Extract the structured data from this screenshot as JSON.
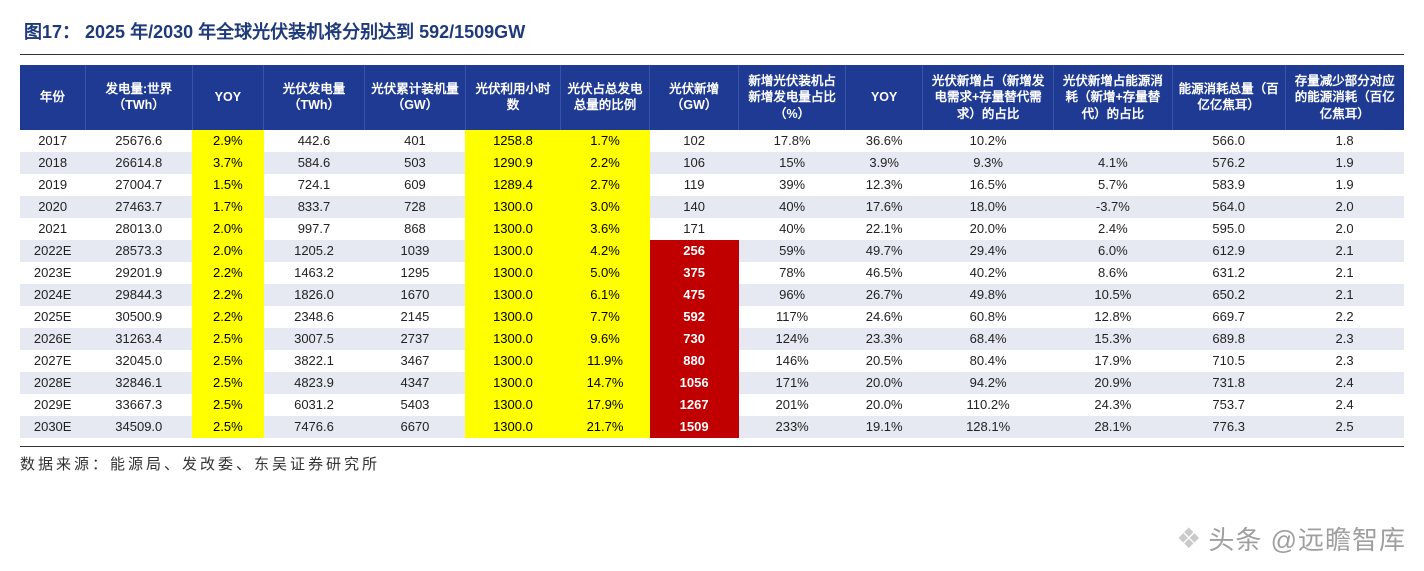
{
  "figure": {
    "title": "图17： 2025 年/2030 年全球光伏装机将分别达到 592/1509GW"
  },
  "table": {
    "header_bg": "#1f3a93",
    "header_fg": "#ffffff",
    "highlight_yellow": "#ffff00",
    "highlight_red": "#c00000",
    "stripe_bg": "#e6e9f2",
    "columns": [
      "年份",
      "发电量:世界（TWh）",
      "YOY",
      "光伏发电量（TWh）",
      "光伏累计装机量（GW）",
      "光伏利用小时数",
      "光伏占总发电总量的比例",
      "光伏新增（GW）",
      "新增光伏装机占新增发电量占比（%）",
      "YOY",
      "光伏新增占（新增发电需求+存量替代需求）的占比",
      "光伏新增占能源消耗（新增+存量替代）的占比",
      "能源消耗总量（百亿亿焦耳）",
      "存量减少部分对应的能源消耗（百亿亿焦耳）"
    ],
    "yellow_cols": [
      2,
      5,
      6
    ],
    "red_col": 7,
    "red_from_row": 5,
    "rows": [
      [
        "2017",
        "25676.6",
        "2.9%",
        "442.6",
        "401",
        "1258.8",
        "1.7%",
        "102",
        "17.8%",
        "36.6%",
        "10.2%",
        "",
        "566.0",
        "1.8"
      ],
      [
        "2018",
        "26614.8",
        "3.7%",
        "584.6",
        "503",
        "1290.9",
        "2.2%",
        "106",
        "15%",
        "3.9%",
        "9.3%",
        "4.1%",
        "576.2",
        "1.9"
      ],
      [
        "2019",
        "27004.7",
        "1.5%",
        "724.1",
        "609",
        "1289.4",
        "2.7%",
        "119",
        "39%",
        "12.3%",
        "16.5%",
        "5.7%",
        "583.9",
        "1.9"
      ],
      [
        "2020",
        "27463.7",
        "1.7%",
        "833.7",
        "728",
        "1300.0",
        "3.0%",
        "140",
        "40%",
        "17.6%",
        "18.0%",
        "-3.7%",
        "564.0",
        "2.0"
      ],
      [
        "2021",
        "28013.0",
        "2.0%",
        "997.7",
        "868",
        "1300.0",
        "3.6%",
        "171",
        "40%",
        "22.1%",
        "20.0%",
        "2.4%",
        "595.0",
        "2.0"
      ],
      [
        "2022E",
        "28573.3",
        "2.0%",
        "1205.2",
        "1039",
        "1300.0",
        "4.2%",
        "256",
        "59%",
        "49.7%",
        "29.4%",
        "6.0%",
        "612.9",
        "2.1"
      ],
      [
        "2023E",
        "29201.9",
        "2.2%",
        "1463.2",
        "1295",
        "1300.0",
        "5.0%",
        "375",
        "78%",
        "46.5%",
        "40.2%",
        "8.6%",
        "631.2",
        "2.1"
      ],
      [
        "2024E",
        "29844.3",
        "2.2%",
        "1826.0",
        "1670",
        "1300.0",
        "6.1%",
        "475",
        "96%",
        "26.7%",
        "49.8%",
        "10.5%",
        "650.2",
        "2.1"
      ],
      [
        "2025E",
        "30500.9",
        "2.2%",
        "2348.6",
        "2145",
        "1300.0",
        "7.7%",
        "592",
        "117%",
        "24.6%",
        "60.8%",
        "12.8%",
        "669.7",
        "2.2"
      ],
      [
        "2026E",
        "31263.4",
        "2.5%",
        "3007.5",
        "2737",
        "1300.0",
        "9.6%",
        "730",
        "124%",
        "23.3%",
        "68.4%",
        "15.3%",
        "689.8",
        "2.3"
      ],
      [
        "2027E",
        "32045.0",
        "2.5%",
        "3822.1",
        "3467",
        "1300.0",
        "11.9%",
        "880",
        "146%",
        "20.5%",
        "80.4%",
        "17.9%",
        "710.5",
        "2.3"
      ],
      [
        "2028E",
        "32846.1",
        "2.5%",
        "4823.9",
        "4347",
        "1300.0",
        "14.7%",
        "1056",
        "171%",
        "20.0%",
        "94.2%",
        "20.9%",
        "731.8",
        "2.4"
      ],
      [
        "2029E",
        "33667.3",
        "2.5%",
        "6031.2",
        "5403",
        "1300.0",
        "17.9%",
        "1267",
        "201%",
        "20.0%",
        "110.2%",
        "24.3%",
        "753.7",
        "2.4"
      ],
      [
        "2030E",
        "34509.0",
        "2.5%",
        "7476.6",
        "6670",
        "1300.0",
        "21.7%",
        "1509",
        "233%",
        "19.1%",
        "128.1%",
        "28.1%",
        "776.3",
        "2.5"
      ]
    ]
  },
  "source": {
    "text": "数据来源：能源局、发改委、东吴证券研究所"
  },
  "watermark": {
    "text": "头条 @远瞻智库"
  }
}
